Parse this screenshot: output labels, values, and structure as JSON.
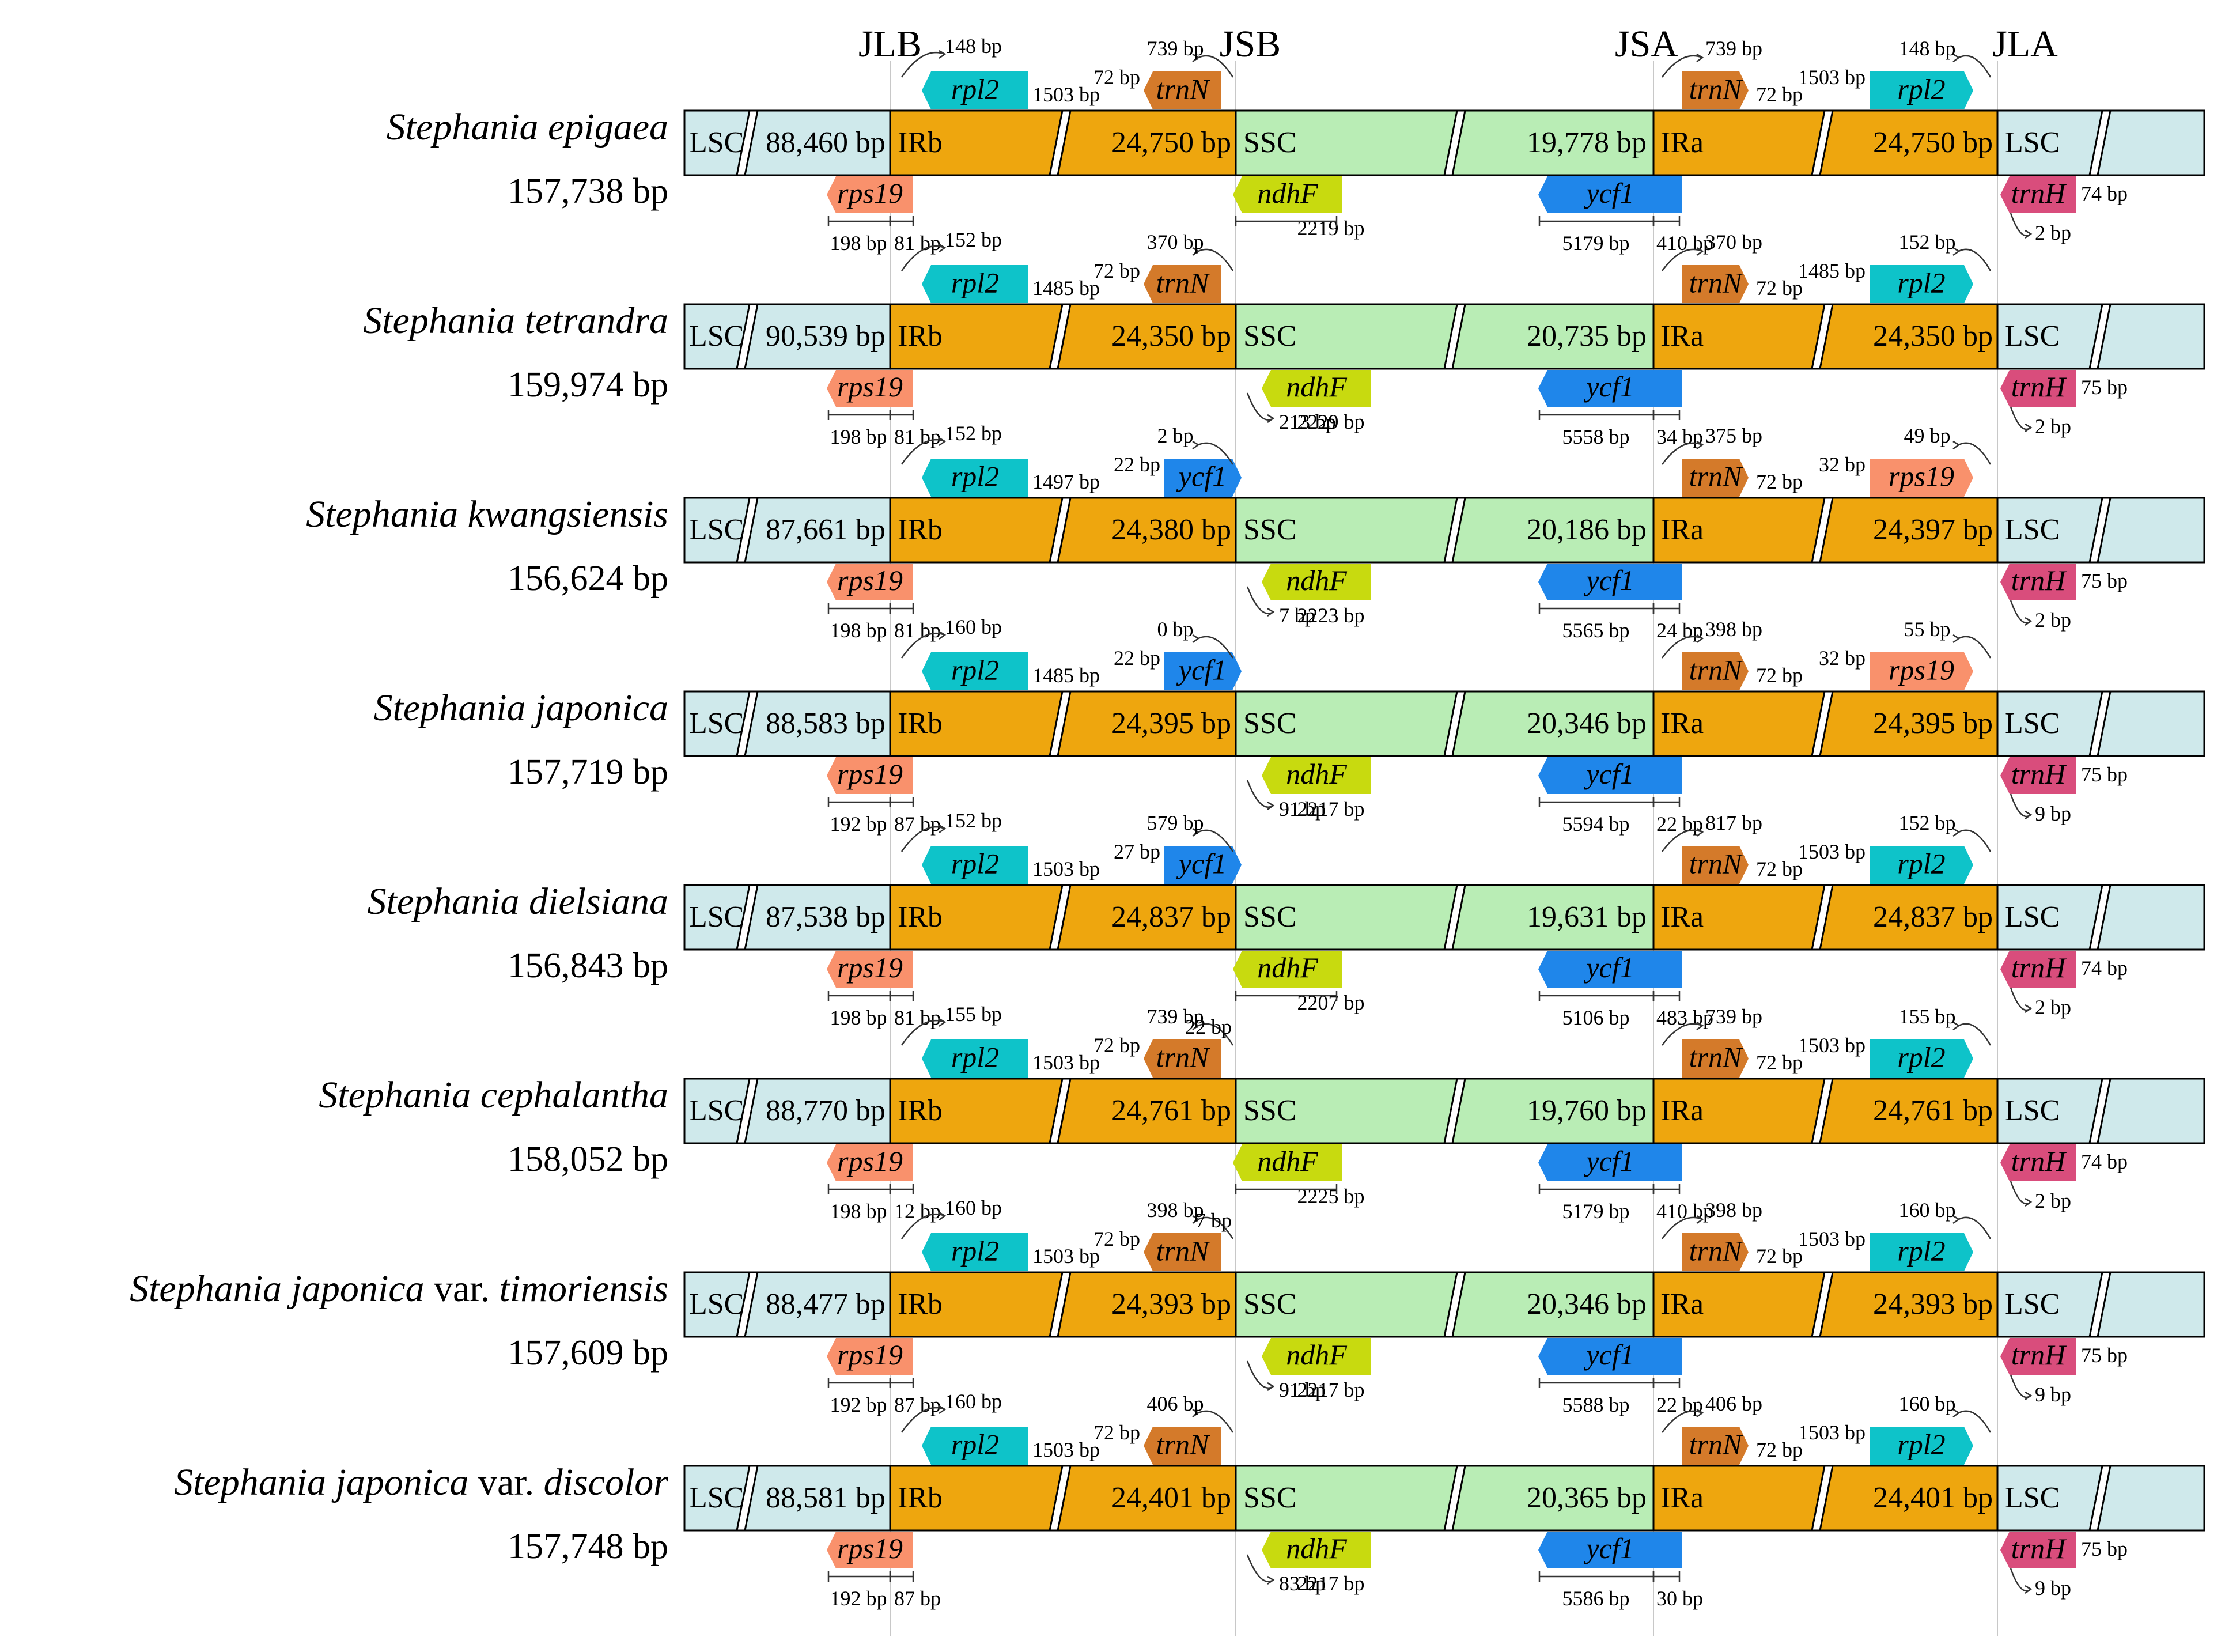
{
  "junctions": [
    "JLB",
    "JSB",
    "JSA",
    "JLA"
  ],
  "colors": {
    "lsc": "#cfe9eb",
    "ir": "#eea60e",
    "ssc": "#b9edb5",
    "rpl2": "#0ec3c9",
    "trnN": "#d47a2a",
    "rps19": "#f9916c",
    "ndhF": "#c8da0f",
    "ycf1": "#1f86ea",
    "trnH": "#d94d7c"
  },
  "species": [
    {
      "name": "Stephania epigaea",
      "name_suffix": "",
      "size": "157,738 bp",
      "lsc": "88,460 bp",
      "irb": "24,750 bp",
      "ssc": "19,778 bp",
      "ira": "24,750 bp",
      "top_left": {
        "gene": "rpl2",
        "dist": "148 bp",
        "extra": "1503 bp"
      },
      "top_jsb": {
        "gene": "trnN",
        "dist": "739 bp",
        "extra": "72 bp"
      },
      "top_jsa": {
        "gene": "trnN",
        "dist": "739 bp",
        "extra": "72 bp"
      },
      "top_right": {
        "gene": "rpl2",
        "dist": "148 bp",
        "extra": "1503 bp"
      },
      "bot_rps19": {
        "gene": "rps19",
        "left": "198 bp",
        "right": "81 bp"
      },
      "bot_jsb": {
        "gene": "ndhF",
        "text": "2219 bp",
        "small": ""
      },
      "bot_jsa": {
        "gene": "ycf1",
        "left": "5179 bp",
        "right": "410 bp"
      },
      "bot_trnH": {
        "gene": "trnH",
        "dist": "74 bp",
        "small": "2 bp"
      }
    },
    {
      "name": "Stephania tetrandra",
      "name_suffix": "",
      "size": "159,974 bp",
      "lsc": "90,539 bp",
      "irb": "24,350 bp",
      "ssc": "20,735 bp",
      "ira": "24,350 bp",
      "top_left": {
        "gene": "rpl2",
        "dist": "152 bp",
        "extra": "1485 bp"
      },
      "top_jsb": {
        "gene": "trnN",
        "dist": "370 bp",
        "extra": "72 bp"
      },
      "top_jsa": {
        "gene": "trnN",
        "dist": "370 bp",
        "extra": "72 bp"
      },
      "top_right": {
        "gene": "rpl2",
        "dist": "152 bp",
        "extra": "1485 bp"
      },
      "bot_rps19": {
        "gene": "rps19",
        "left": "198 bp",
        "right": "81 bp"
      },
      "bot_jsb": {
        "gene": "ndhF",
        "text": "2229 bp",
        "small": "213 bp"
      },
      "bot_jsa": {
        "gene": "ycf1",
        "left": "5558 bp",
        "right": "34 bp"
      },
      "bot_trnH": {
        "gene": "trnH",
        "dist": "75 bp",
        "small": "2 bp"
      }
    },
    {
      "name": "Stephania kwangsiensis",
      "name_suffix": "",
      "size": "156,624 bp",
      "lsc": "87,661 bp",
      "irb": "24,380 bp",
      "ssc": "20,186 bp",
      "ira": "24,397 bp",
      "top_left": {
        "gene": "rpl2",
        "dist": "152 bp",
        "extra": "1497 bp"
      },
      "top_jsb": {
        "gene": "ycf1",
        "dist": "2 bp",
        "extra": "22 bp"
      },
      "top_jsa": {
        "gene": "trnN",
        "dist": "375 bp",
        "extra": "72 bp"
      },
      "top_right": {
        "gene": "rps19",
        "dist": "49 bp",
        "extra": "32 bp"
      },
      "bot_rps19": {
        "gene": "rps19",
        "left": "198 bp",
        "right": "81 bp"
      },
      "bot_jsb": {
        "gene": "ndhF",
        "text": "2223 bp",
        "small": "7 bp"
      },
      "bot_jsa": {
        "gene": "ycf1",
        "left": "5565 bp",
        "right": "24 bp"
      },
      "bot_trnH": {
        "gene": "trnH",
        "dist": "75 bp",
        "small": "2 bp"
      }
    },
    {
      "name": "Stephania japonica",
      "name_suffix": "",
      "size": "157,719 bp",
      "lsc": "88,583 bp",
      "irb": "24,395 bp",
      "ssc": "20,346 bp",
      "ira": "24,395 bp",
      "top_left": {
        "gene": "rpl2",
        "dist": "160 bp",
        "extra": "1485 bp"
      },
      "top_jsb": {
        "gene": "ycf1",
        "dist": "0 bp",
        "extra": "22 bp"
      },
      "top_jsa": {
        "gene": "trnN",
        "dist": "398 bp",
        "extra": "72 bp"
      },
      "top_right": {
        "gene": "rps19",
        "dist": "55 bp",
        "extra": "32 bp"
      },
      "bot_rps19": {
        "gene": "rps19",
        "left": "192 bp",
        "right": "87 bp"
      },
      "bot_jsb": {
        "gene": "ndhF",
        "text": "2217 bp",
        "small": "91 bp"
      },
      "bot_jsa": {
        "gene": "ycf1",
        "left": "5594 bp",
        "right": "22 bp"
      },
      "bot_trnH": {
        "gene": "trnH",
        "dist": "75 bp",
        "small": "9 bp"
      }
    },
    {
      "name": "Stephania dielsiana",
      "name_suffix": "",
      "size": "156,843 bp",
      "lsc": "87,538 bp",
      "irb": "24,837 bp",
      "ssc": "19,631 bp",
      "ira": "24,837 bp",
      "top_left": {
        "gene": "rpl2",
        "dist": "152 bp",
        "extra": "1503 bp"
      },
      "top_jsb": {
        "gene": "ycf1",
        "dist": "579 bp",
        "extra": "27 bp"
      },
      "top_jsa": {
        "gene": "trnN",
        "dist": "817 bp",
        "extra": "72 bp"
      },
      "top_right": {
        "gene": "rpl2",
        "dist": "152 bp",
        "extra": "1503 bp"
      },
      "bot_rps19": {
        "gene": "rps19",
        "left": "198 bp",
        "right": "81 bp"
      },
      "bot_jsb": {
        "gene": "ndhF",
        "text": "2207 bp",
        "small": ""
      },
      "bot_jsa": {
        "gene": "ycf1",
        "left": "5106 bp",
        "right": "483 bp"
      },
      "bot_trnH": {
        "gene": "trnH",
        "dist": "74 bp",
        "small": "2 bp"
      }
    },
    {
      "name": "Stephania cephalantha",
      "name_suffix": "",
      "size": "158,052 bp",
      "lsc": "88,770 bp",
      "irb": "24,761 bp",
      "ssc": "19,760 bp",
      "ira": "24,761 bp",
      "top_left": {
        "gene": "rpl2",
        "dist": "155 bp",
        "extra": "1503 bp"
      },
      "top_jsb": {
        "gene": "trnN",
        "dist": "739 bp",
        "extra": "72 bp",
        "edge": "22 bp"
      },
      "top_jsa": {
        "gene": "trnN",
        "dist": "739 bp",
        "extra": "72 bp"
      },
      "top_right": {
        "gene": "rpl2",
        "dist": "155 bp",
        "extra": "1503 bp"
      },
      "bot_rps19": {
        "gene": "rps19",
        "left": "198 bp",
        "right": "12 bp"
      },
      "bot_jsb": {
        "gene": "ndhF",
        "text": "2225 bp",
        "small": ""
      },
      "bot_jsa": {
        "gene": "ycf1",
        "left": "5179 bp",
        "right": "410 bp"
      },
      "bot_trnH": {
        "gene": "trnH",
        "dist": "74 bp",
        "small": "2 bp"
      }
    },
    {
      "name": "Stephania japonica",
      "name_suffix": " var. ",
      "name_var": "timoriensis",
      "size": "157,609 bp",
      "lsc": "88,477 bp",
      "irb": "24,393 bp",
      "ssc": "20,346 bp",
      "ira": "24,393 bp",
      "top_left": {
        "gene": "rpl2",
        "dist": "160 bp",
        "extra": "1503 bp"
      },
      "top_jsb": {
        "gene": "trnN",
        "dist": "398 bp",
        "extra": "72 bp",
        "edge": "7 bp"
      },
      "top_jsa": {
        "gene": "trnN",
        "dist": "398 bp",
        "extra": "72 bp"
      },
      "top_right": {
        "gene": "rpl2",
        "dist": "160 bp",
        "extra": "1503 bp"
      },
      "bot_rps19": {
        "gene": "rps19",
        "left": "192 bp",
        "right": "87 bp"
      },
      "bot_jsb": {
        "gene": "ndhF",
        "text": "2217 bp",
        "small": "91 bp"
      },
      "bot_jsa": {
        "gene": "ycf1",
        "left": "5588 bp",
        "right": "22 bp"
      },
      "bot_trnH": {
        "gene": "trnH",
        "dist": "75 bp",
        "small": "9 bp"
      }
    },
    {
      "name": "Stephania japonica",
      "name_suffix": " var. ",
      "name_var": "discolor",
      "size": "157,748 bp",
      "lsc": "88,581 bp",
      "irb": "24,401 bp",
      "ssc": "20,365 bp",
      "ira": "24,401 bp",
      "top_left": {
        "gene": "rpl2",
        "dist": "160 bp",
        "extra": "1503 bp"
      },
      "top_jsb": {
        "gene": "trnN",
        "dist": "406 bp",
        "extra": "72 bp"
      },
      "top_jsa": {
        "gene": "trnN",
        "dist": "406 bp",
        "extra": "72 bp"
      },
      "top_right": {
        "gene": "rpl2",
        "dist": "160 bp",
        "extra": "1503 bp"
      },
      "bot_rps19": {
        "gene": "rps19",
        "left": "192 bp",
        "right": "87 bp"
      },
      "bot_jsb": {
        "gene": "ndhF",
        "text": "2217 bp",
        "small": "83 bp"
      },
      "bot_jsa": {
        "gene": "ycf1",
        "left": "5586 bp",
        "right": "30 bp"
      },
      "bot_trnH": {
        "gene": "trnH",
        "dist": "75 bp",
        "small": "9 bp"
      }
    }
  ]
}
